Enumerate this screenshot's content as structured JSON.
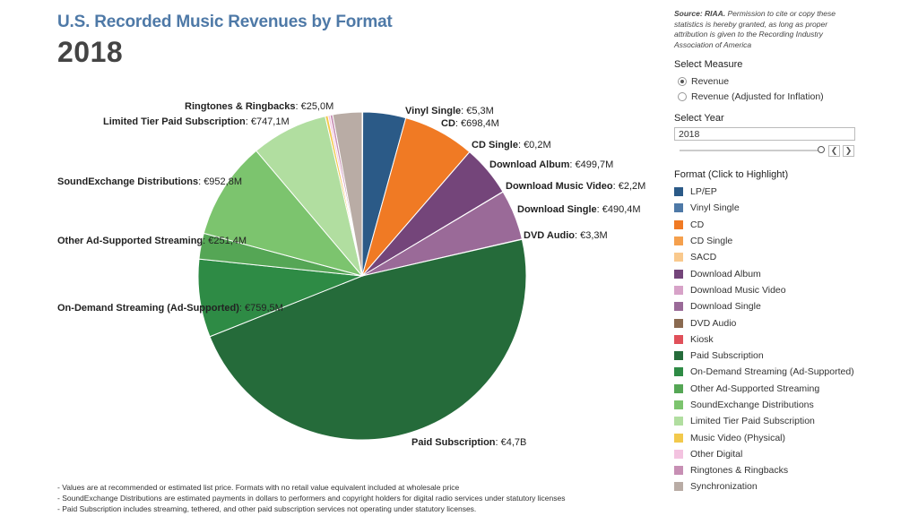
{
  "header": {
    "title": "U.S. Recorded Music Revenues by Format",
    "year": "2018"
  },
  "chart_data": {
    "type": "pie",
    "title": "U.S. Recorded Music Revenues by Format",
    "subtitle": "2018",
    "slices": [
      {
        "name": "Vinyl Single",
        "value_label": "€5,3M",
        "value": 5.3,
        "color": "#1f3f73"
      },
      {
        "name": "LP/EP",
        "value_label": "",
        "value": 419.0,
        "color": "#2b5a87"
      },
      {
        "name": "CD",
        "value_label": "€698,4M",
        "value": 698.4,
        "color": "#f07a24"
      },
      {
        "name": "CD Single",
        "value_label": "€0,2M",
        "value": 0.2,
        "color": "#f5a04d"
      },
      {
        "name": "Download Album",
        "value_label": "€499,7M",
        "value": 499.7,
        "color": "#74457a"
      },
      {
        "name": "Download Music Video",
        "value_label": "€2,2M",
        "value": 2.2,
        "color": "#c98db8"
      },
      {
        "name": "Download Single",
        "value_label": "€490,4M",
        "value": 490.4,
        "color": "#9a6a98"
      },
      {
        "name": "DVD Audio",
        "value_label": "€3,3M",
        "value": 3.3,
        "color": "#8a6a50"
      },
      {
        "name": "Paid Subscription",
        "value_label": "€4,7B",
        "value": 4700,
        "color": "#256b3a"
      },
      {
        "name": "On-Demand Streaming (Ad-Supported)",
        "value_label": "€759,5M",
        "value": 759.5,
        "color": "#2e8b45"
      },
      {
        "name": "Other Ad-Supported Streaming",
        "value_label": "€251,4M",
        "value": 251.4,
        "color": "#55a655"
      },
      {
        "name": "SoundExchange Distributions",
        "value_label": "€952,8M",
        "value": 952.8,
        "color": "#7cc46e"
      },
      {
        "name": "Limited Tier Paid Subscription",
        "value_label": "€747,1M",
        "value": 747.1,
        "color": "#b1dea0"
      },
      {
        "name": "Music Video (Physical)",
        "value_label": "",
        "value": 27.0,
        "color": "#f2c94c"
      },
      {
        "name": "Other Digital",
        "value_label": "",
        "value": 21.0,
        "color": "#f3c3e0"
      },
      {
        "name": "Ringtones & Ringbacks",
        "value_label": "€25,0M",
        "value": 25.0,
        "color": "#c78fb4"
      },
      {
        "name": "Synchronization",
        "value_label": "",
        "value": 285.0,
        "color": "#b9aca5"
      }
    ]
  },
  "sidebar": {
    "source_bold": "Source: RIAA.",
    "source_text": " Permission to cite or copy these statistics is hereby granted, as long as proper attribution is given to the Recording Industry Association of America",
    "measure_title": "Select Measure",
    "measure_options": [
      {
        "label": "Revenue",
        "selected": true
      },
      {
        "label": "Revenue (Adjusted for Inflation)",
        "selected": false
      }
    ],
    "year_title": "Select Year",
    "year_value": "2018",
    "prev_icon": "chevron-left-icon",
    "next_icon": "chevron-right-icon",
    "legend_title": "Format (Click to Highlight)",
    "legend": [
      {
        "label": "LP/EP",
        "color": "#2b5a87"
      },
      {
        "label": "Vinyl Single",
        "color": "#4e79a7"
      },
      {
        "label": "CD",
        "color": "#f07a24"
      },
      {
        "label": "CD Single",
        "color": "#f5a04d"
      },
      {
        "label": "SACD",
        "color": "#f9c98d"
      },
      {
        "label": "Download Album",
        "color": "#74457a"
      },
      {
        "label": "Download Music Video",
        "color": "#d7a2c8"
      },
      {
        "label": "Download Single",
        "color": "#9a6a98"
      },
      {
        "label": "DVD Audio",
        "color": "#8a6a50"
      },
      {
        "label": "Kiosk",
        "color": "#e0505a"
      },
      {
        "label": "Paid Subscription",
        "color": "#256b3a"
      },
      {
        "label": "On-Demand Streaming (Ad-Supported)",
        "color": "#2e8b45"
      },
      {
        "label": "Other Ad-Supported Streaming",
        "color": "#55a655"
      },
      {
        "label": "SoundExchange Distributions",
        "color": "#7cc46e"
      },
      {
        "label": "Limited Tier Paid Subscription",
        "color": "#b1dea0"
      },
      {
        "label": "Music Video (Physical)",
        "color": "#f2c94c"
      },
      {
        "label": "Other Digital",
        "color": "#f3c3e0"
      },
      {
        "label": "Ringtones & Ringbacks",
        "color": "#c78fb4"
      },
      {
        "label": "Synchronization",
        "color": "#b9aca5"
      }
    ]
  },
  "notes": [
    "- Values are at recommended or estimated list price. Formats with no retail value equivalent included at wholesale price",
    "- SoundExchange Distributions are estimated payments in dollars to performers and copyright holders for digital radio services under statutory licenses",
    "- Paid Subscription includes streaming, tethered, and other paid subscription services not operating under statutory licenses."
  ]
}
